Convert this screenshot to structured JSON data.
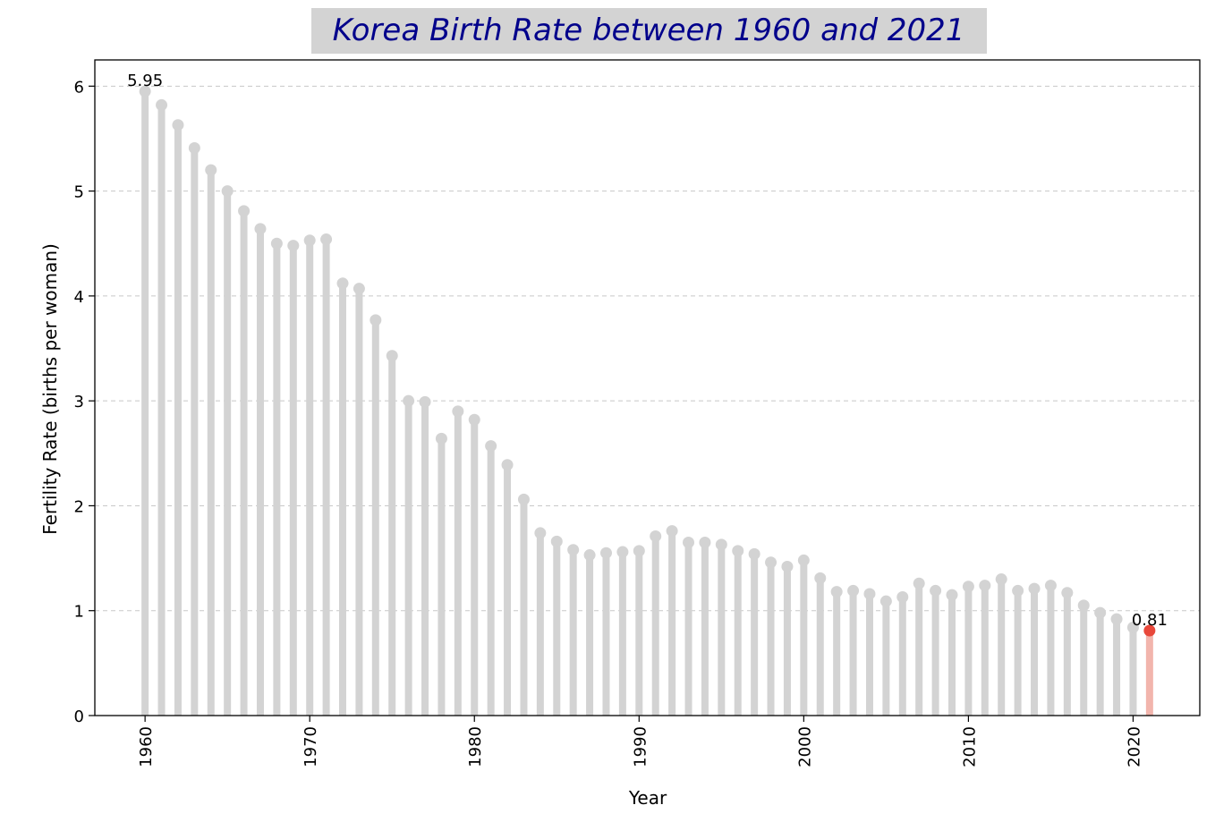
{
  "chart_data": {
    "type": "lollipop",
    "title": "Korea Birth Rate between 1960 and 2021",
    "xlabel": "Year",
    "ylabel": "Fertility Rate (births per woman)",
    "xlim": [
      1956.95,
      2024.05
    ],
    "ylim": [
      0,
      6.25
    ],
    "x_ticks": [
      1960,
      1970,
      1980,
      1990,
      2000,
      2010,
      2020
    ],
    "y_ticks": [
      0,
      1,
      2,
      3,
      4,
      5,
      6
    ],
    "grid": "horizontal dashed",
    "x": [
      1960,
      1961,
      1962,
      1963,
      1964,
      1965,
      1966,
      1967,
      1968,
      1969,
      1970,
      1971,
      1972,
      1973,
      1974,
      1975,
      1976,
      1977,
      1978,
      1979,
      1980,
      1981,
      1982,
      1983,
      1984,
      1985,
      1986,
      1987,
      1988,
      1989,
      1990,
      1991,
      1992,
      1993,
      1994,
      1995,
      1996,
      1997,
      1998,
      1999,
      2000,
      2001,
      2002,
      2003,
      2004,
      2005,
      2006,
      2007,
      2008,
      2009,
      2010,
      2011,
      2012,
      2013,
      2014,
      2015,
      2016,
      2017,
      2018,
      2019,
      2020,
      2021
    ],
    "values": [
      5.95,
      5.82,
      5.63,
      5.41,
      5.2,
      5.0,
      4.81,
      4.64,
      4.5,
      4.48,
      4.53,
      4.54,
      4.12,
      4.07,
      3.77,
      3.43,
      3.0,
      2.99,
      2.64,
      2.9,
      2.82,
      2.57,
      2.39,
      2.06,
      1.74,
      1.66,
      1.58,
      1.53,
      1.55,
      1.56,
      1.57,
      1.71,
      1.76,
      1.65,
      1.65,
      1.63,
      1.57,
      1.54,
      1.46,
      1.42,
      1.48,
      1.31,
      1.18,
      1.19,
      1.16,
      1.09,
      1.13,
      1.26,
      1.19,
      1.15,
      1.23,
      1.24,
      1.3,
      1.19,
      1.21,
      1.24,
      1.17,
      1.05,
      0.98,
      0.92,
      0.84,
      0.81
    ],
    "annotations": [
      {
        "year": 1960,
        "label": "5.95"
      },
      {
        "year": 2021,
        "label": "0.81"
      }
    ],
    "colors": {
      "stem": "#d3d3d3",
      "marker": "#d3d3d3",
      "highlight_stem": "#f2b5ad",
      "highlight_marker": "#e8473a",
      "title_text": "#00008b",
      "title_box": "#d3d3d3",
      "grid": "#c8c8c8"
    }
  }
}
